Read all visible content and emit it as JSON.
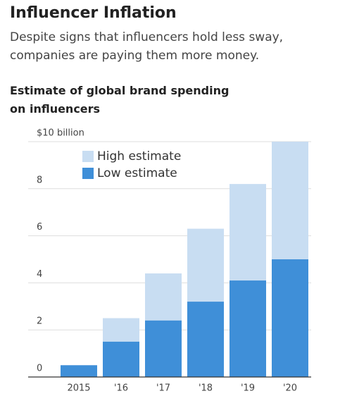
{
  "chart_data": {
    "type": "bar",
    "title": "Influencer Inflation",
    "subtitle": "Despite signs that influencers hold less sway, companies are paying them more money.",
    "chart_title": "Estimate of global brand spending on influencers",
    "categories": [
      "2015",
      "'16",
      "'17",
      "'18",
      "'19",
      "'20"
    ],
    "series": [
      {
        "name": "High estimate",
        "color": "#c8ddf2",
        "values": [
          0.5,
          2.5,
          4.4,
          6.3,
          8.2,
          10.0
        ]
      },
      {
        "name": "Low estimate",
        "color": "#3f8fd8",
        "values": [
          0.5,
          1.5,
          2.4,
          3.2,
          4.1,
          5.0
        ]
      }
    ],
    "ylim": [
      0,
      10
    ],
    "yticks": [
      0,
      2,
      4,
      6,
      8,
      {
        "value": 10,
        "label": "$10 billion"
      }
    ],
    "grid": true,
    "legend": "top-left"
  }
}
